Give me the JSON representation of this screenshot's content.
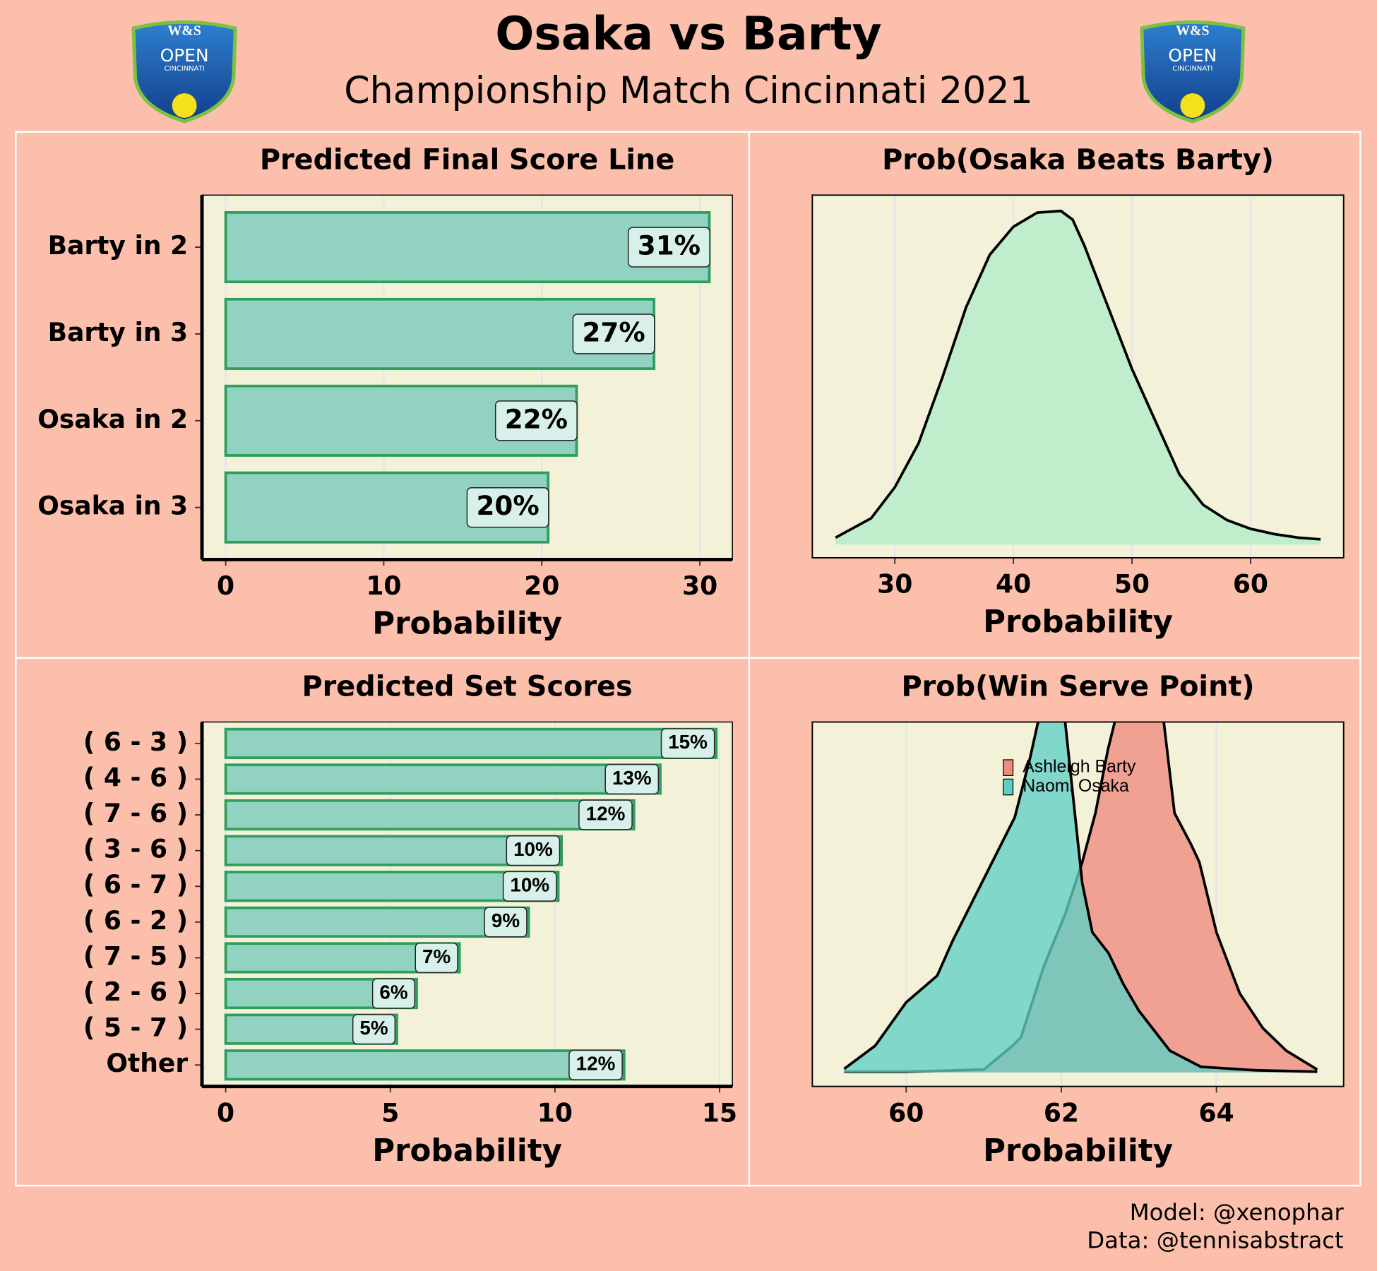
{
  "title": "Osaka vs Barty",
  "subtitle": "Championship Match Cincinnati 2021",
  "logo": {
    "mark": "W&S",
    "name": "OPEN",
    "city": "CINCINNATI"
  },
  "footer": [
    "Model: @xenophar",
    "Data: @tennisabstract"
  ],
  "chart_data": [
    {
      "type": "bar",
      "title": "Predicted Final Score Line",
      "xlabel": "Probability",
      "categories": [
        "Barty in 2",
        "Barty in 3",
        "Osaka in 2",
        "Osaka in 3"
      ],
      "values": [
        30.6,
        27.1,
        22.2,
        20.4
      ],
      "value_labels": [
        "31%",
        "27%",
        "22%",
        "20%"
      ],
      "xlim": [
        -1.5,
        32.06
      ],
      "xticks": [
        0,
        10,
        20,
        30
      ],
      "color": "#91d2c0",
      "edgecolor": "#2e9e5e",
      "grid": true
    },
    {
      "type": "density",
      "title": "Prob(Osaka Beats Barty)",
      "xlabel": "Probability",
      "x": [
        25,
        28,
        30,
        32,
        34,
        36,
        38,
        40,
        42,
        44,
        45,
        46,
        48,
        50,
        52,
        54,
        56,
        58,
        60,
        62,
        64,
        65.9
      ],
      "values": [
        0.0012,
        0.0045,
        0.0098,
        0.0173,
        0.0285,
        0.0405,
        0.0495,
        0.0543,
        0.0567,
        0.057,
        0.0555,
        0.051,
        0.0405,
        0.03,
        0.021,
        0.012,
        0.0068,
        0.0042,
        0.0027,
        0.0018,
        0.0012,
        0.0009
      ],
      "color": "#c0edcc",
      "xlim": [
        23.04,
        67.85
      ],
      "ylim": [
        -0.00225,
        0.0597
      ],
      "xticks": [
        30,
        40,
        50,
        60
      ],
      "grid": true
    },
    {
      "type": "bar",
      "title": "Predicted Set Scores",
      "xlabel": "Probability",
      "categories": [
        "( 6 - 3 )",
        "( 4 - 6 )",
        "( 7 - 6 )",
        "( 3 - 6 )",
        "( 6 - 7 )",
        "( 6 - 2 )",
        "( 7 - 5 )",
        "( 2 - 6 )",
        "( 5 - 7 )",
        "Other"
      ],
      "values": [
        14.9,
        13.2,
        12.4,
        10.2,
        10.1,
        9.2,
        7.1,
        5.8,
        5.2,
        12.1
      ],
      "value_labels": [
        "15%",
        "13%",
        "12%",
        "10%",
        "10%",
        "9%",
        "7%",
        "6%",
        "5%",
        "12%"
      ],
      "xlim": [
        -0.72,
        15.39
      ],
      "xticks": [
        0,
        5,
        10,
        15
      ],
      "color": "#91d2c0",
      "edgecolor": "#2e9e5e",
      "grid": true
    },
    {
      "type": "density",
      "title": "Prob(Win Serve Point)",
      "xlabel": "Probability",
      "series": [
        {
          "name": "Ashleigh Barty",
          "color": "#f08a7e",
          "x": [
            59.2,
            60,
            61,
            61.37,
            61.48,
            61.77,
            62.05,
            62.27,
            62.44,
            62.6,
            62.8,
            63.1,
            63.3,
            63.46,
            63.67,
            63.78,
            64,
            64.3,
            64.6,
            64.9,
            65.3
          ],
          "values": [
            0.001,
            0.001,
            0.004,
            0.038,
            0.05,
            0.15,
            0.226,
            0.3,
            0.37,
            0.46,
            0.55,
            0.56,
            0.52,
            0.37,
            0.326,
            0.3,
            0.2,
            0.113,
            0.063,
            0.031,
            0.004
          ]
        },
        {
          "name": "Naomi Osaka",
          "color": "#5fcfc5",
          "x": [
            59.2,
            59.6,
            60,
            60.4,
            60.6,
            61,
            61.4,
            61.6,
            61.8,
            62,
            62.05,
            62.27,
            62.4,
            62.61,
            62.8,
            63,
            63.4,
            63.8,
            64.5,
            65.3
          ],
          "values": [
            0.005,
            0.038,
            0.1,
            0.138,
            0.188,
            0.276,
            0.364,
            0.45,
            0.55,
            0.56,
            0.5,
            0.27,
            0.2,
            0.17,
            0.126,
            0.088,
            0.031,
            0.008,
            0.003,
            0.001
          ]
        }
      ],
      "xlim": [
        58.79,
        65.64
      ],
      "ylim": [
        -0.02,
        0.5
      ],
      "xticks": [
        60,
        62,
        64
      ],
      "grid": true,
      "legend": "top"
    }
  ]
}
